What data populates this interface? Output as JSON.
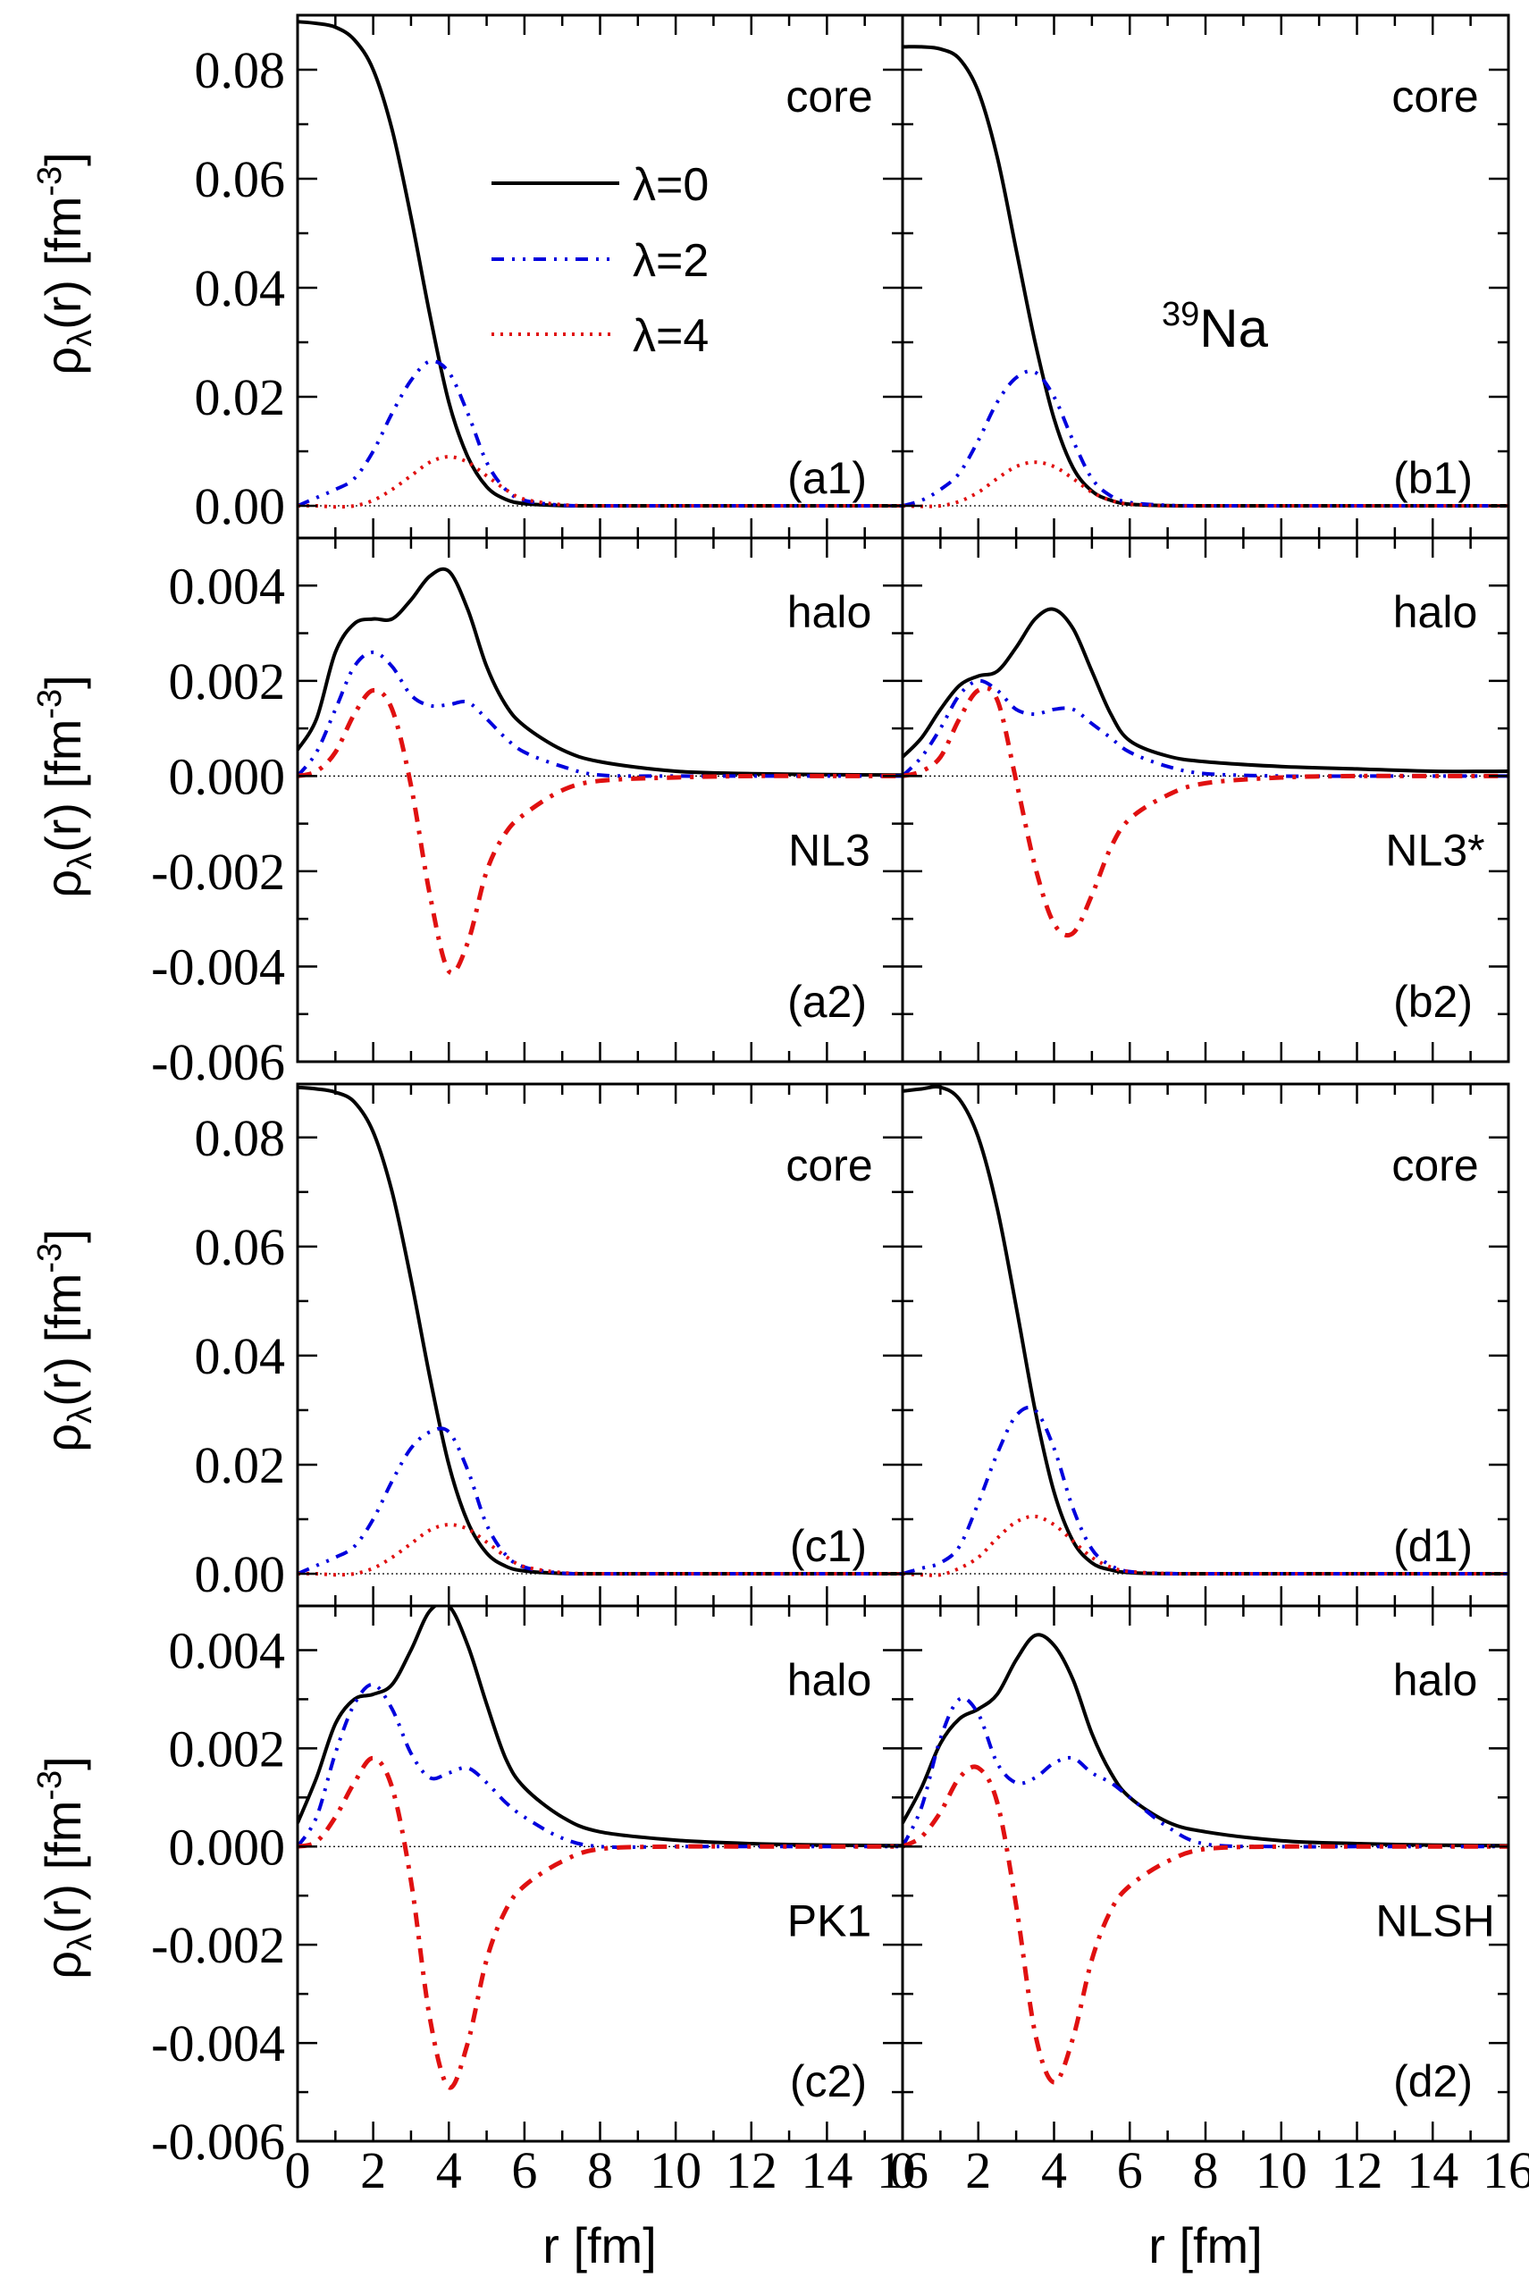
{
  "figure": {
    "nucleus_label": {
      "mass": "39",
      "symbol": "Na"
    },
    "x_axis_label": "r [fm]",
    "y_axis_label": {
      "main": "ρ",
      "sub": "λ",
      "rest": "(r) [fm",
      "sup": "-3",
      "close": "]"
    },
    "legend": [
      {
        "label": "λ=0",
        "color": "#000000",
        "style": "solid"
      },
      {
        "label": "λ=2",
        "color": "#0000dd",
        "style": "dash-dot-dot"
      },
      {
        "label": "λ=4",
        "color": "#e01010",
        "style": "dotted"
      }
    ]
  },
  "chart_data": {
    "type": "line",
    "title": "",
    "xlabel": "r [fm]",
    "ylabel": "ρλ(r) [fm^-3]",
    "xlim": [
      0,
      16
    ],
    "x_ticks": [
      0,
      2,
      4,
      6,
      8,
      10,
      12,
      14,
      16
    ],
    "x_tick_labels": [
      "0",
      "2",
      "4",
      "6",
      "8",
      "10",
      "12",
      "14",
      "16"
    ],
    "r": [
      0,
      0.5,
      1,
      1.5,
      2,
      2.5,
      3,
      3.5,
      4,
      4.5,
      5,
      5.5,
      6,
      7,
      8,
      10,
      12,
      14,
      16
    ],
    "panels": [
      {
        "id": "a1",
        "label": "(a1)",
        "kind": "core",
        "tag": "core",
        "model": "",
        "col": 0,
        "row": 0,
        "ylim": [
          -0.0059,
          0.09
        ],
        "y_ticks": [
          0,
          0.02,
          0.04,
          0.06,
          0.08
        ],
        "y_tick_labels": [
          "0.00",
          "0.02",
          "0.04",
          "0.06",
          "0.08"
        ],
        "series": [
          {
            "name": "λ=0",
            "values": [
              0.0888,
              0.0885,
              0.0878,
              0.0855,
              0.08,
              0.069,
              0.053,
              0.035,
              0.019,
              0.009,
              0.0035,
              0.0012,
              0.0004,
              5e-05,
              0,
              0,
              0,
              0,
              0
            ]
          },
          {
            "name": "λ=2",
            "values": [
              0,
              0.0015,
              0.003,
              0.005,
              0.01,
              0.017,
              0.023,
              0.0265,
              0.0245,
              0.017,
              0.008,
              0.003,
              0.001,
              0.0001,
              0,
              0,
              0,
              0,
              0
            ]
          },
          {
            "name": "λ=4",
            "values": [
              0,
              0,
              -0.0002,
              0,
              0.001,
              0.003,
              0.0055,
              0.008,
              0.009,
              0.008,
              0.0055,
              0.003,
              0.0012,
              0.0002,
              0,
              0,
              0,
              0,
              0
            ]
          }
        ]
      },
      {
        "id": "b1",
        "label": "(b1)",
        "kind": "core",
        "tag": "core",
        "model": "",
        "col": 1,
        "row": 0,
        "ylim": [
          -0.0059,
          0.09
        ],
        "y_ticks": [
          0,
          0.02,
          0.04,
          0.06,
          0.08
        ],
        "y_tick_labels": [],
        "series": [
          {
            "name": "λ=0",
            "values": [
              0.0842,
              0.0842,
              0.0838,
              0.082,
              0.076,
              0.064,
              0.047,
              0.03,
              0.016,
              0.007,
              0.0027,
              0.001,
              0.0003,
              3e-05,
              0,
              0,
              0,
              0,
              0
            ]
          },
          {
            "name": "λ=2",
            "values": [
              0,
              0.001,
              0.003,
              0.006,
              0.012,
              0.019,
              0.0235,
              0.0245,
              0.02,
              0.012,
              0.005,
              0.0018,
              0.0006,
              0.0001,
              0,
              0,
              0,
              0,
              0
            ]
          },
          {
            "name": "λ=4",
            "values": [
              0,
              -0.0001,
              0,
              0.0008,
              0.0025,
              0.005,
              0.0072,
              0.008,
              0.0072,
              0.005,
              0.0025,
              0.001,
              0.0003,
              0,
              0,
              0,
              0,
              0,
              0
            ]
          }
        ]
      },
      {
        "id": "a2",
        "label": "(a2)",
        "kind": "halo",
        "tag": "halo",
        "model": "NL3",
        "col": 0,
        "row": 1,
        "ylim": [
          -0.006,
          0.005
        ],
        "y_ticks": [
          -0.006,
          -0.004,
          -0.002,
          0,
          0.002,
          0.004
        ],
        "y_tick_labels": [
          "-0.006",
          "-0.004",
          "-0.002",
          "0.000",
          "0.002",
          "0.004"
        ],
        "series": [
          {
            "name": "λ=0",
            "values": [
              0.00055,
              0.0012,
              0.0026,
              0.0032,
              0.0033,
              0.0033,
              0.0037,
              0.0042,
              0.0043,
              0.0035,
              0.0023,
              0.0015,
              0.00105,
              0.00055,
              0.0003,
              0.0001,
              5e-05,
              3e-05,
              2e-05
            ]
          },
          {
            "name": "λ=2",
            "values": [
              0,
              0.0005,
              0.0014,
              0.0023,
              0.0026,
              0.0023,
              0.0017,
              0.00148,
              0.0015,
              0.00155,
              0.0012,
              0.0008,
              0.0005,
              0.0002,
              2e-05,
              0,
              0,
              0,
              0
            ]
          },
          {
            "name": "λ=4",
            "values": [
              0,
              0.0001,
              0.0005,
              0.0013,
              0.0018,
              0.0014,
              -0.0002,
              -0.0025,
              -0.0041,
              -0.0035,
              -0.002,
              -0.0012,
              -0.0008,
              -0.0003,
              -0.0001,
              -3e-05,
              0,
              0,
              0
            ]
          }
        ]
      },
      {
        "id": "b2",
        "label": "(b2)",
        "kind": "halo",
        "tag": "halo",
        "model": "NL3*",
        "col": 1,
        "row": 1,
        "ylim": [
          -0.006,
          0.005
        ],
        "y_ticks": [
          -0.006,
          -0.004,
          -0.002,
          0,
          0.002,
          0.004
        ],
        "y_tick_labels": [],
        "series": [
          {
            "name": "λ=0",
            "values": [
              0.0004,
              0.0008,
              0.0014,
              0.0019,
              0.0021,
              0.0022,
              0.0027,
              0.0033,
              0.0035,
              0.0031,
              0.0022,
              0.0013,
              0.00074,
              0.00042,
              0.0003,
              0.0002,
              0.00015,
              0.0001,
              0.0001
            ]
          },
          {
            "name": "λ=2",
            "values": [
              0,
              0.0004,
              0.001,
              0.0017,
              0.002,
              0.0018,
              0.0014,
              0.0013,
              0.0014,
              0.0014,
              0.0011,
              0.0008,
              0.0005,
              0.0002,
              5e-05,
              0,
              0,
              0,
              0
            ]
          },
          {
            "name": "λ=4",
            "values": [
              0,
              0.0001,
              0.0004,
              0.0012,
              0.0018,
              0.0016,
              -0.0001,
              -0.0019,
              -0.0031,
              -0.0033,
              -0.0025,
              -0.0015,
              -0.0009,
              -0.0004,
              -0.00015,
              -3e-05,
              0,
              0,
              0
            ]
          }
        ]
      },
      {
        "id": "c1",
        "label": "(c1)",
        "kind": "core",
        "tag": "core",
        "model": "",
        "col": 0,
        "row": 2,
        "ylim": [
          -0.0059,
          0.0898
        ],
        "y_ticks": [
          0,
          0.02,
          0.04,
          0.06,
          0.08
        ],
        "y_tick_labels": [
          "0.00",
          "0.02",
          "0.04",
          "0.06",
          "0.08"
        ],
        "series": [
          {
            "name": "λ=0",
            "values": [
              0.0892,
              0.0889,
              0.0883,
              0.0865,
              0.081,
              0.07,
              0.054,
              0.036,
              0.02,
              0.0095,
              0.0038,
              0.0014,
              0.0005,
              5e-05,
              0,
              0,
              0,
              0,
              0
            ]
          },
          {
            "name": "λ=2",
            "values": [
              0,
              0.0015,
              0.003,
              0.005,
              0.01,
              0.017,
              0.023,
              0.026,
              0.026,
              0.019,
              0.009,
              0.0035,
              0.0012,
              0.0001,
              0,
              0,
              0,
              0,
              0
            ]
          },
          {
            "name": "λ=4",
            "values": [
              0,
              0,
              -0.0002,
              0,
              0.001,
              0.003,
              0.0055,
              0.008,
              0.009,
              0.0082,
              0.0058,
              0.0032,
              0.0013,
              0.0002,
              0,
              0,
              0,
              0,
              0
            ]
          }
        ]
      },
      {
        "id": "d1",
        "label": "(d1)",
        "kind": "core",
        "tag": "core",
        "model": "",
        "col": 1,
        "row": 2,
        "ylim": [
          -0.0059,
          0.0898
        ],
        "y_ticks": [
          0,
          0.02,
          0.04,
          0.06,
          0.08
        ],
        "y_tick_labels": [],
        "series": [
          {
            "name": "λ=0",
            "values": [
              0.0885,
              0.0889,
              0.0892,
              0.087,
              0.08,
              0.067,
              0.049,
              0.03,
              0.015,
              0.006,
              0.002,
              0.0007,
              0.0002,
              2e-05,
              0,
              0,
              0,
              0,
              0
            ]
          },
          {
            "name": "λ=2",
            "values": [
              0,
              0.001,
              0.002,
              0.005,
              0.013,
              0.022,
              0.029,
              0.03,
              0.023,
              0.012,
              0.0045,
              0.0015,
              0.0004,
              3e-05,
              0,
              0,
              0,
              0,
              0
            ]
          },
          {
            "name": "λ=4",
            "values": [
              0,
              -0.0002,
              -0.0002,
              0.001,
              0.003,
              0.0065,
              0.0095,
              0.0105,
              0.009,
              0.006,
              0.003,
              0.0012,
              0.0004,
              3e-05,
              0,
              0,
              0,
              0,
              0
            ]
          }
        ]
      },
      {
        "id": "c2",
        "label": "(c2)",
        "kind": "halo",
        "tag": "halo",
        "model": "PK1",
        "col": 0,
        "row": 3,
        "ylim": [
          -0.006,
          0.0049
        ],
        "y_ticks": [
          -0.006,
          -0.004,
          -0.002,
          0,
          0.002,
          0.004
        ],
        "y_tick_labels": [
          "-0.006",
          "-0.004",
          "-0.002",
          "0.000",
          "0.002",
          "0.004"
        ],
        "series": [
          {
            "name": "λ=0",
            "values": [
              0.00048,
              0.0014,
              0.0025,
              0.003,
              0.0031,
              0.0033,
              0.004,
              0.0048,
              0.0049,
              0.0041,
              0.0029,
              0.0018,
              0.0012,
              0.0006,
              0.0003,
              0.00013,
              6e-05,
              3e-05,
              2e-05
            ]
          },
          {
            "name": "λ=2",
            "values": [
              0,
              0.0006,
              0.0019,
              0.0029,
              0.0033,
              0.0028,
              0.0019,
              0.0014,
              0.0015,
              0.0016,
              0.0013,
              0.0009,
              0.0006,
              0.00017,
              0,
              0,
              0,
              0,
              0
            ]
          },
          {
            "name": "λ=4",
            "values": [
              0,
              0.0001,
              0.0006,
              0.0013,
              0.0018,
              0.0012,
              -0.0007,
              -0.0035,
              -0.0049,
              -0.004,
              -0.0023,
              -0.0013,
              -0.0008,
              -0.0003,
              -5e-05,
              0,
              0,
              0,
              0
            ]
          }
        ]
      },
      {
        "id": "d2",
        "label": "(d2)",
        "kind": "halo",
        "tag": "halo",
        "model": "NLSH",
        "col": 1,
        "row": 3,
        "ylim": [
          -0.006,
          0.0049
        ],
        "y_ticks": [
          -0.006,
          -0.004,
          -0.002,
          0,
          0.002,
          0.004
        ],
        "y_tick_labels": [],
        "series": [
          {
            "name": "λ=0",
            "values": [
              0.00048,
              0.0012,
              0.0021,
              0.0026,
              0.0028,
              0.0031,
              0.0038,
              0.0043,
              0.0041,
              0.0034,
              0.0023,
              0.0015,
              0.001,
              0.0005,
              0.0003,
              0.00012,
              6e-05,
              3e-05,
              2e-05
            ]
          },
          {
            "name": "λ=2",
            "values": [
              0,
              0.0008,
              0.0022,
              0.003,
              0.0027,
              0.0017,
              0.0013,
              0.0014,
              0.0017,
              0.0018,
              0.0015,
              0.0013,
              0.001,
              0.0004,
              5e-05,
              0,
              0,
              0,
              0
            ]
          },
          {
            "name": "λ=4",
            "values": [
              0,
              0.0002,
              0.0007,
              0.0014,
              0.0016,
              0.0009,
              -0.0012,
              -0.0038,
              -0.0048,
              -0.0039,
              -0.0023,
              -0.0013,
              -0.0008,
              -0.0003,
              -5e-05,
              0,
              0,
              0,
              0
            ]
          }
        ]
      }
    ],
    "legend_entries": [
      "λ=0",
      "λ=2",
      "λ=4"
    ],
    "legend_location": "upper-center of panel a1",
    "grid": false
  }
}
